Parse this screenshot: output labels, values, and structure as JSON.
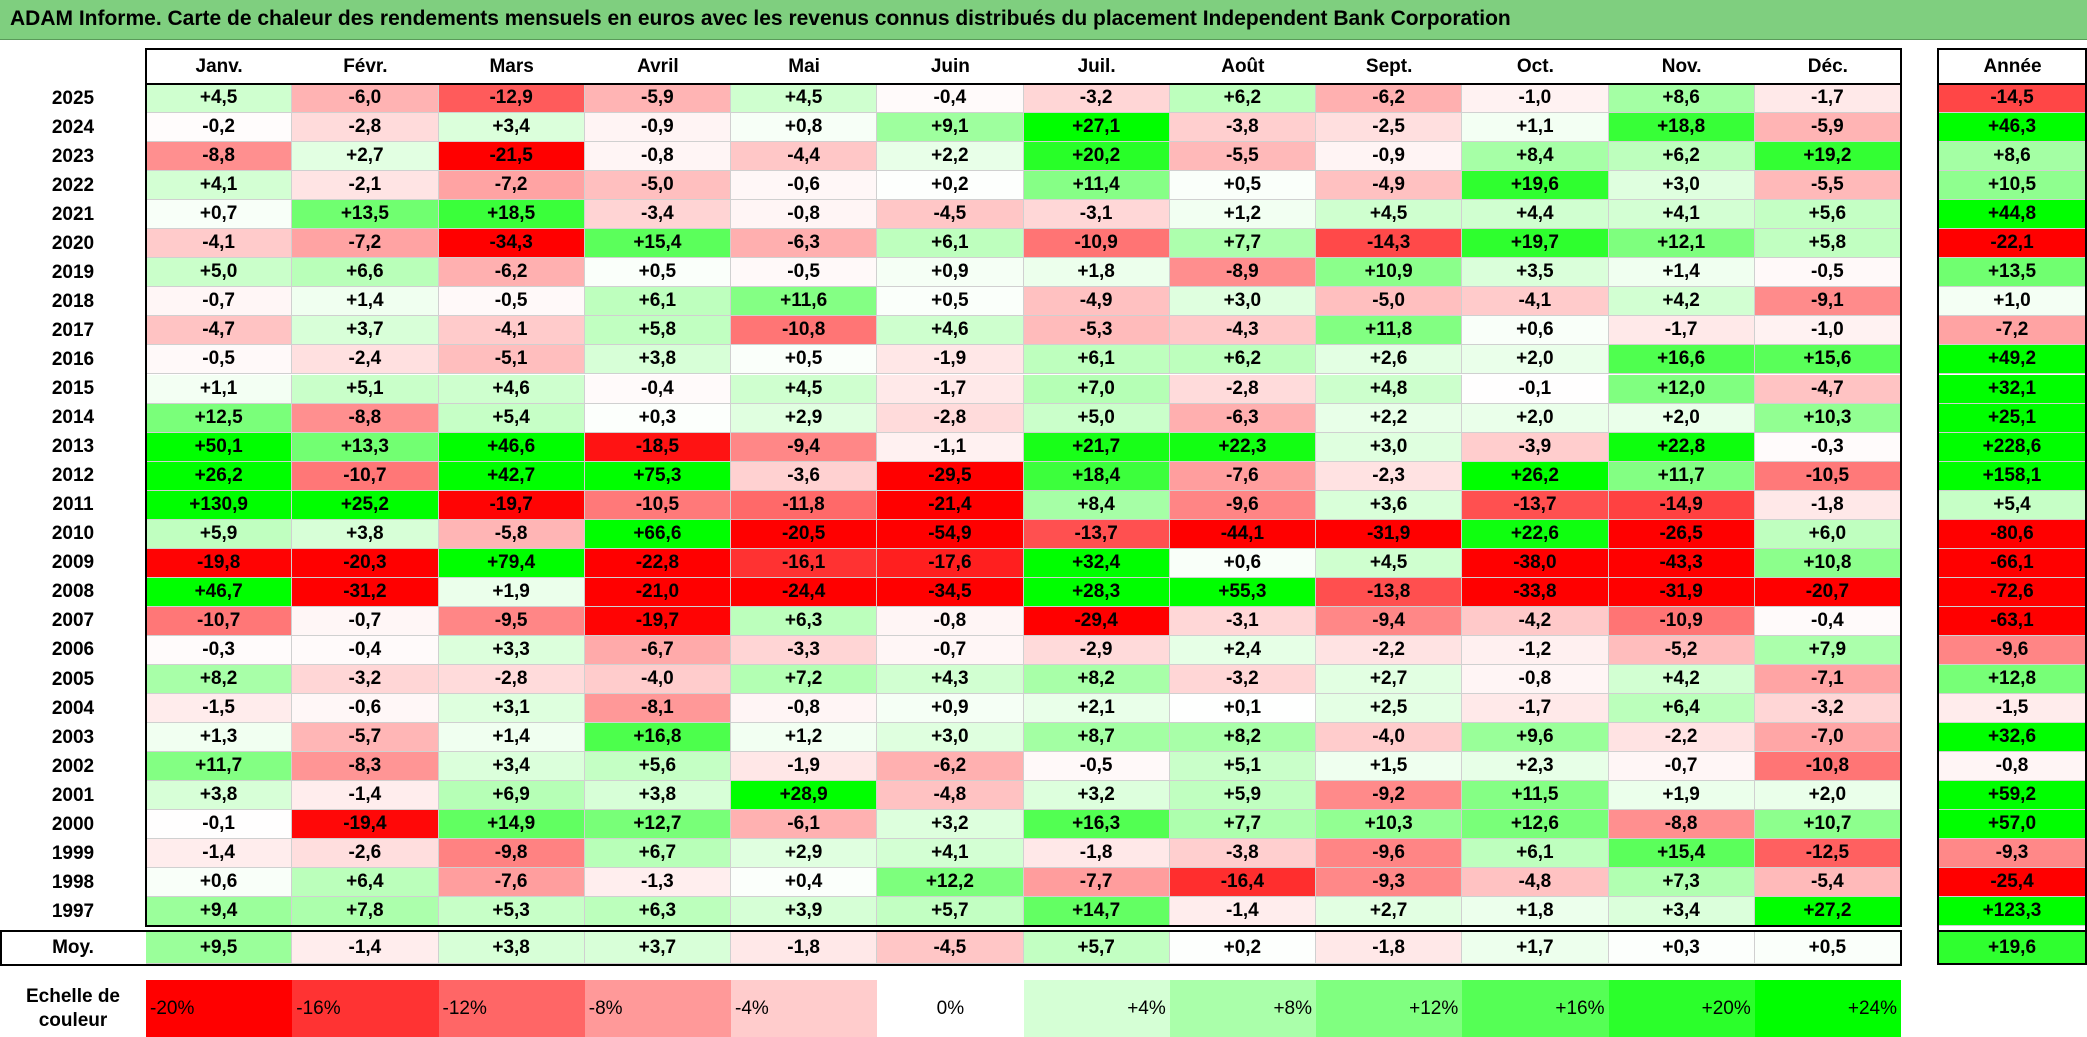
{
  "title": "ADAM Informe. Carte de chaleur des rendements mensuels en euros avec les revenus connus distribués du placement Independent Bank Corporation",
  "chart_data": {
    "type": "heatmap",
    "columns": [
      "Janv.",
      "Févr.",
      "Mars",
      "Avril",
      "Mai",
      "Juin",
      "Juil.",
      "Août",
      "Sept.",
      "Oct.",
      "Nov.",
      "Déc."
    ],
    "year_column_label": "Année",
    "rows": [
      {
        "year": "2025",
        "values": [
          "+4,5",
          "-6,0",
          "-12,9",
          "-5,9",
          "+4,5",
          "-0,4",
          "-3,2",
          "+6,2",
          "-6,2",
          "-1,0",
          "+8,6",
          "-1,7"
        ],
        "annual": "-14,5"
      },
      {
        "year": "2024",
        "values": [
          "-0,2",
          "-2,8",
          "+3,4",
          "-0,9",
          "+0,8",
          "+9,1",
          "+27,1",
          "-3,8",
          "-2,5",
          "+1,1",
          "+18,8",
          "-5,9"
        ],
        "annual": "+46,3"
      },
      {
        "year": "2023",
        "values": [
          "-8,8",
          "+2,7",
          "-21,5",
          "-0,8",
          "-4,4",
          "+2,2",
          "+20,2",
          "-5,5",
          "-0,9",
          "+8,4",
          "+6,2",
          "+19,2"
        ],
        "annual": "+8,6"
      },
      {
        "year": "2022",
        "values": [
          "+4,1",
          "-2,1",
          "-7,2",
          "-5,0",
          "-0,6",
          "+0,2",
          "+11,4",
          "+0,5",
          "-4,9",
          "+19,6",
          "+3,0",
          "-5,5"
        ],
        "annual": "+10,5"
      },
      {
        "year": "2021",
        "values": [
          "+0,7",
          "+13,5",
          "+18,5",
          "-3,4",
          "-0,8",
          "-4,5",
          "-3,1",
          "+1,2",
          "+4,5",
          "+4,4",
          "+4,1",
          "+5,6"
        ],
        "annual": "+44,8"
      },
      {
        "year": "2020",
        "values": [
          "-4,1",
          "-7,2",
          "-34,3",
          "+15,4",
          "-6,3",
          "+6,1",
          "-10,9",
          "+7,7",
          "-14,3",
          "+19,7",
          "+12,1",
          "+5,8"
        ],
        "annual": "-22,1"
      },
      {
        "year": "2019",
        "values": [
          "+5,0",
          "+6,6",
          "-6,2",
          "+0,5",
          "-0,5",
          "+0,9",
          "+1,8",
          "-8,9",
          "+10,9",
          "+3,5",
          "+1,4",
          "-0,5"
        ],
        "annual": "+13,5"
      },
      {
        "year": "2018",
        "values": [
          "-0,7",
          "+1,4",
          "-0,5",
          "+6,1",
          "+11,6",
          "+0,5",
          "-4,9",
          "+3,0",
          "-5,0",
          "-4,1",
          "+4,2",
          "-9,1"
        ],
        "annual": "+1,0"
      },
      {
        "year": "2017",
        "values": [
          "-4,7",
          "+3,7",
          "-4,1",
          "+5,8",
          "-10,8",
          "+4,6",
          "-5,3",
          "-4,3",
          "+11,8",
          "+0,6",
          "-1,7",
          "-1,0"
        ],
        "annual": "-7,2"
      },
      {
        "year": "2016",
        "values": [
          "-0,5",
          "-2,4",
          "-5,1",
          "+3,8",
          "+0,5",
          "-1,9",
          "+6,1",
          "+6,2",
          "+2,6",
          "+2,0",
          "+16,6",
          "+15,6"
        ],
        "annual": "+49,2"
      },
      {
        "year": "2015",
        "values": [
          "+1,1",
          "+5,1",
          "+4,6",
          "-0,4",
          "+4,5",
          "-1,7",
          "+7,0",
          "-2,8",
          "+4,8",
          "-0,1",
          "+12,0",
          "-4,7"
        ],
        "annual": "+32,1"
      },
      {
        "year": "2014",
        "values": [
          "+12,5",
          "-8,8",
          "+5,4",
          "+0,3",
          "+2,9",
          "-2,8",
          "+5,0",
          "-6,3",
          "+2,2",
          "+2,0",
          "+2,0",
          "+10,3"
        ],
        "annual": "+25,1"
      },
      {
        "year": "2013",
        "values": [
          "+50,1",
          "+13,3",
          "+46,6",
          "-18,5",
          "-9,4",
          "-1,1",
          "+21,7",
          "+22,3",
          "+3,0",
          "-3,9",
          "+22,8",
          "-0,3"
        ],
        "annual": "+228,6"
      },
      {
        "year": "2012",
        "values": [
          "+26,2",
          "-10,7",
          "+42,7",
          "+75,3",
          "-3,6",
          "-29,5",
          "+18,4",
          "-7,6",
          "-2,3",
          "+26,2",
          "+11,7",
          "-10,5"
        ],
        "annual": "+158,1"
      },
      {
        "year": "2011",
        "values": [
          "+130,9",
          "+25,2",
          "-19,7",
          "-10,5",
          "-11,8",
          "-21,4",
          "+8,4",
          "-9,6",
          "+3,6",
          "-13,7",
          "-14,9",
          "-1,8"
        ],
        "annual": "+5,4"
      },
      {
        "year": "2010",
        "values": [
          "+5,9",
          "+3,8",
          "-5,8",
          "+66,6",
          "-20,5",
          "-54,9",
          "-13,7",
          "-44,1",
          "-31,9",
          "+22,6",
          "-26,5",
          "+6,0"
        ],
        "annual": "-80,6"
      },
      {
        "year": "2009",
        "values": [
          "-19,8",
          "-20,3",
          "+79,4",
          "-22,8",
          "-16,1",
          "-17,6",
          "+32,4",
          "+0,6",
          "+4,5",
          "-38,0",
          "-43,3",
          "+10,8"
        ],
        "annual": "-66,1"
      },
      {
        "year": "2008",
        "values": [
          "+46,7",
          "-31,2",
          "+1,9",
          "-21,0",
          "-24,4",
          "-34,5",
          "+28,3",
          "+55,3",
          "-13,8",
          "-33,8",
          "-31,9",
          "-20,7"
        ],
        "annual": "-72,6"
      },
      {
        "year": "2007",
        "values": [
          "-10,7",
          "-0,7",
          "-9,5",
          "-19,7",
          "+6,3",
          "-0,8",
          "-29,4",
          "-3,1",
          "-9,4",
          "-4,2",
          "-10,9",
          "-0,4"
        ],
        "annual": "-63,1"
      },
      {
        "year": "2006",
        "values": [
          "-0,3",
          "-0,4",
          "+3,3",
          "-6,7",
          "-3,3",
          "-0,7",
          "-2,9",
          "+2,4",
          "-2,2",
          "-1,2",
          "-5,2",
          "+7,9"
        ],
        "annual": "-9,6"
      },
      {
        "year": "2005",
        "values": [
          "+8,2",
          "-3,2",
          "-2,8",
          "-4,0",
          "+7,2",
          "+4,3",
          "+8,2",
          "-3,2",
          "+2,7",
          "-0,8",
          "+4,2",
          "-7,1"
        ],
        "annual": "+12,8"
      },
      {
        "year": "2004",
        "values": [
          "-1,5",
          "-0,6",
          "+3,1",
          "-8,1",
          "-0,8",
          "+0,9",
          "+2,1",
          "+0,1",
          "+2,5",
          "-1,7",
          "+6,4",
          "-3,2"
        ],
        "annual": "-1,5"
      },
      {
        "year": "2003",
        "values": [
          "+1,3",
          "-5,7",
          "+1,4",
          "+16,8",
          "+1,2",
          "+3,0",
          "+8,7",
          "+8,2",
          "-4,0",
          "+9,6",
          "-2,2",
          "-7,0"
        ],
        "annual": "+32,6"
      },
      {
        "year": "2002",
        "values": [
          "+11,7",
          "-8,3",
          "+3,4",
          "+5,6",
          "-1,9",
          "-6,2",
          "-0,5",
          "+5,1",
          "+1,5",
          "+2,3",
          "-0,7",
          "-10,8"
        ],
        "annual": "-0,8"
      },
      {
        "year": "2001",
        "values": [
          "+3,8",
          "-1,4",
          "+6,9",
          "+3,8",
          "+28,9",
          "-4,8",
          "+3,2",
          "+5,9",
          "-9,2",
          "+11,5",
          "+1,9",
          "+2,0"
        ],
        "annual": "+59,2"
      },
      {
        "year": "2000",
        "values": [
          "-0,1",
          "-19,4",
          "+14,9",
          "+12,7",
          "-6,1",
          "+3,2",
          "+16,3",
          "+7,7",
          "+10,3",
          "+12,6",
          "-8,8",
          "+10,7"
        ],
        "annual": "+57,0"
      },
      {
        "year": "1999",
        "values": [
          "-1,4",
          "-2,6",
          "-9,8",
          "+6,7",
          "+2,9",
          "+4,1",
          "-1,8",
          "-3,8",
          "-9,6",
          "+6,1",
          "+15,4",
          "-12,5"
        ],
        "annual": "-9,3"
      },
      {
        "year": "1998",
        "values": [
          "+0,6",
          "+6,4",
          "-7,6",
          "-1,3",
          "+0,4",
          "+12,2",
          "-7,7",
          "-16,4",
          "-9,3",
          "-4,8",
          "+7,3",
          "-5,4"
        ],
        "annual": "-25,4"
      },
      {
        "year": "1997",
        "values": [
          "+9,4",
          "+7,8",
          "+5,3",
          "+6,3",
          "+3,9",
          "+5,7",
          "+14,7",
          "-1,4",
          "+2,7",
          "+1,8",
          "+3,4",
          "+27,2"
        ],
        "annual": "+123,3"
      }
    ],
    "average": {
      "label": "Moy.",
      "values": [
        "+9,5",
        "-1,4",
        "+3,8",
        "+3,7",
        "-1,8",
        "-4,5",
        "+5,7",
        "+0,2",
        "-1,8",
        "+1,7",
        "+0,3",
        "+0,5"
      ],
      "annual": "+19,6"
    },
    "scale": {
      "label_line1": "Echelle de",
      "label_line2": "couleur",
      "items": [
        {
          "label": "-20%",
          "value": -20,
          "color": "#ff0000"
        },
        {
          "label": "-16%",
          "value": -16,
          "color": "#ff3333"
        },
        {
          "label": "-12%",
          "value": -12,
          "color": "#ff6666"
        },
        {
          "label": "-8%",
          "value": -8,
          "color": "#ff9999"
        },
        {
          "label": "-4%",
          "value": -4,
          "color": "#ffcccc"
        },
        {
          "label": "0%",
          "value": 0,
          "color": "#ffffff"
        },
        {
          "label": "+4%",
          "value": 4,
          "color": "#d5ffd5"
        },
        {
          "label": "+8%",
          "value": 8,
          "color": "#aaffaa"
        },
        {
          "label": "+12%",
          "value": 12,
          "color": "#80ff80"
        },
        {
          "label": "+16%",
          "value": 16,
          "color": "#55ff55"
        },
        {
          "label": "+20%",
          "value": 20,
          "color": "#2bff2b"
        },
        {
          "label": "+24%",
          "value": 24,
          "color": "#00ff00"
        }
      ]
    }
  }
}
